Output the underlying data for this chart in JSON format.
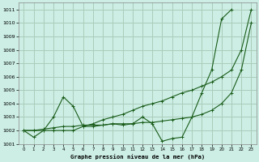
{
  "title": "Graphe pression niveau de la mer (hPa)",
  "bg_color": "#cceee4",
  "grid_color": "#aaccbb",
  "line_color": "#1a5c1a",
  "ylim": [
    1001,
    1011.5
  ],
  "xlim": [
    -0.5,
    23.5
  ],
  "yticks": [
    1001,
    1002,
    1003,
    1004,
    1005,
    1006,
    1007,
    1008,
    1009,
    1010,
    1011
  ],
  "xticks": [
    0,
    1,
    2,
    3,
    4,
    5,
    6,
    7,
    8,
    9,
    10,
    11,
    12,
    13,
    14,
    15,
    16,
    17,
    18,
    19,
    20,
    21,
    22,
    23
  ],
  "line1_x": [
    0,
    1,
    2,
    3,
    4,
    5,
    6,
    7,
    8,
    9,
    10,
    11,
    12,
    13,
    14,
    15,
    16,
    17,
    18,
    19,
    20,
    21
  ],
  "line1_y": [
    1002.0,
    1001.5,
    1002.0,
    1003.0,
    1004.5,
    1003.8,
    1002.3,
    1002.3,
    1002.4,
    1002.5,
    1002.4,
    1002.5,
    1003.0,
    1002.5,
    1001.2,
    1001.4,
    1001.5,
    1003.0,
    1004.8,
    1006.5,
    1010.3,
    1011.0
  ],
  "line2_x": [
    0,
    1,
    2,
    3,
    4,
    5,
    6,
    7,
    8,
    9,
    10,
    11,
    12,
    13,
    14,
    15,
    16,
    17,
    18,
    19,
    20,
    21,
    22,
    23
  ],
  "line2_y": [
    1002.0,
    1002.0,
    1002.1,
    1002.2,
    1002.3,
    1002.3,
    1002.4,
    1002.4,
    1002.4,
    1002.5,
    1002.5,
    1002.5,
    1002.6,
    1002.6,
    1002.7,
    1002.8,
    1002.9,
    1003.0,
    1003.2,
    1003.5,
    1004.0,
    1004.8,
    1006.5,
    1010.0
  ],
  "line3_x": [
    0,
    1,
    2,
    3,
    4,
    5,
    6,
    7,
    8,
    9,
    10,
    11,
    12,
    13,
    14,
    15,
    16,
    17,
    18,
    19,
    20,
    21,
    22,
    23
  ],
  "line3_y": [
    1002.0,
    1002.0,
    1002.0,
    1002.0,
    1002.0,
    1002.0,
    1002.3,
    1002.5,
    1002.8,
    1003.0,
    1003.2,
    1003.5,
    1003.8,
    1004.0,
    1004.2,
    1004.5,
    1004.8,
    1005.0,
    1005.3,
    1005.6,
    1006.0,
    1006.5,
    1008.0,
    1011.0
  ]
}
